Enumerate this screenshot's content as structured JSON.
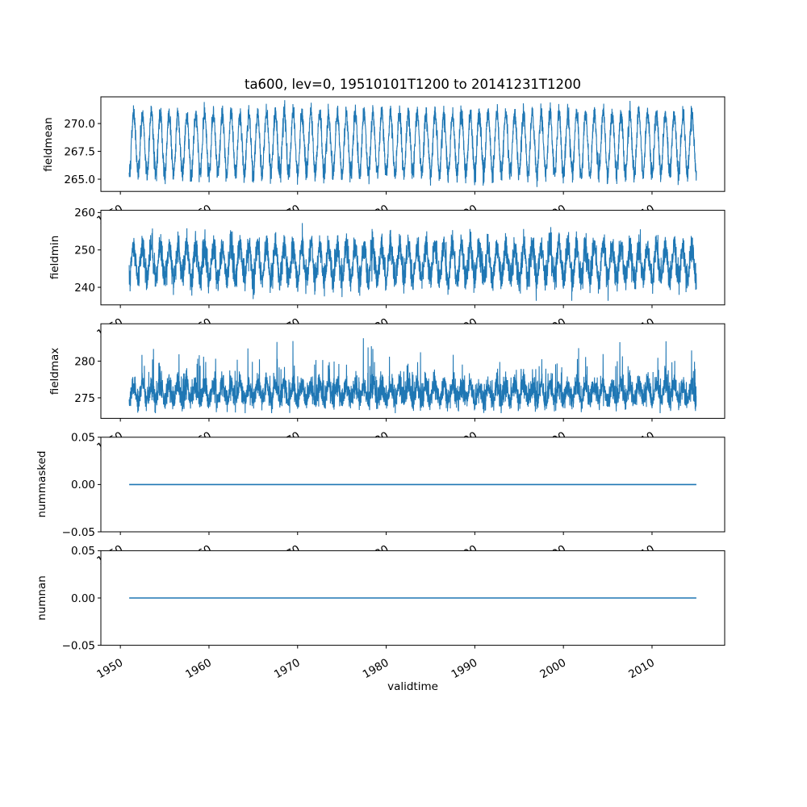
{
  "figure": {
    "title": "ta600, lev=0, 19510101T1200 to 20141231T1200",
    "xlabel": "validtime",
    "background": "#ffffff",
    "text_color": "#000000",
    "axes_edge_color": "#000000",
    "line_color": "#1f77b4"
  },
  "chart_data": {
    "type": "line",
    "title": "ta600, lev=0, 19510101T1200 to 20141231T1200",
    "xlabel": "validtime",
    "grid": false,
    "legend": null,
    "line_color": "#1f77b4",
    "xlim": [
      1947.8,
      2018.2
    ],
    "xticks": [
      1950,
      1960,
      1970,
      1980,
      1990,
      2000,
      2010
    ],
    "xtick_labels": [
      "1950",
      "1960",
      "1970",
      "1980",
      "1990",
      "2000",
      "2010"
    ],
    "xtick_rotation_deg": 30,
    "x_data_range": [
      1951.0,
      2015.0
    ],
    "subplots": [
      {
        "ylabel": "fieldmean",
        "ylim": [
          263.9,
          272.4
        ],
        "ytick_values": [
          265.0,
          267.5,
          270.0
        ],
        "ytick_labels": [
          "265.0",
          "267.5",
          "270.0"
        ],
        "approx_value_range": [
          264.3,
          272.0
        ],
        "series_model": {
          "kind": "seasonal_noise",
          "baseline": 268.2,
          "seasonal_amplitude": 2.7,
          "noise_sd": 0.45,
          "spike_prob": 0,
          "spike_scale": 0,
          "spike_direction": "both",
          "points_per_year": 73,
          "seed": 101,
          "clamp": [
            264.2,
            272.1
          ]
        }
      },
      {
        "ylabel": "fieldmin",
        "ylim": [
          235.3,
          260.6
        ],
        "ytick_values": [
          240,
          250,
          260
        ],
        "ytick_labels": [
          "240",
          "250",
          "260"
        ],
        "approx_value_range": [
          236.5,
          259.5
        ],
        "series_model": {
          "kind": "seasonal_noise",
          "baseline": 246.6,
          "seasonal_amplitude": 4.4,
          "noise_sd": 1.9,
          "spike_prob": 0.012,
          "spike_scale": 2.6,
          "spike_direction": "both",
          "points_per_year": 73,
          "seed": 202,
          "clamp": [
            236.4,
            259.6
          ]
        }
      },
      {
        "ylabel": "fieldmax",
        "ylim": [
          272.2,
          285.1
        ],
        "ytick_values": [
          275,
          280
        ],
        "ytick_labels": [
          "275",
          "280"
        ],
        "approx_value_range": [
          273.0,
          284.5
        ],
        "series_model": {
          "kind": "seasonal_noise",
          "baseline": 275.7,
          "seasonal_amplitude": 1.0,
          "noise_sd": 0.78,
          "spike_prob": 0.04,
          "spike_scale": 2.1,
          "spike_direction": "up",
          "points_per_year": 73,
          "seed": 303,
          "clamp": [
            272.9,
            284.6
          ]
        }
      },
      {
        "ylabel": "nummasked",
        "ylim": [
          -0.05,
          0.05
        ],
        "ytick_values": [
          -0.05,
          0.0,
          0.05
        ],
        "ytick_labels": [
          "−0.05",
          "0.00",
          "0.05"
        ],
        "approx_value_range": [
          0,
          0
        ],
        "series_model": {
          "kind": "constant",
          "value": 0.0
        }
      },
      {
        "ylabel": "numnan",
        "ylim": [
          -0.05,
          0.05
        ],
        "ytick_values": [
          -0.05,
          0.0,
          0.05
        ],
        "ytick_labels": [
          "−0.05",
          "0.00",
          "0.05"
        ],
        "approx_value_range": [
          0,
          0
        ],
        "series_model": {
          "kind": "constant",
          "value": 0.0
        }
      }
    ]
  }
}
